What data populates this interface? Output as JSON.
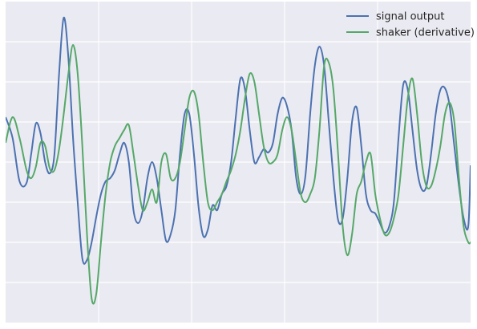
{
  "chart_data": {
    "type": "line",
    "style": {
      "background": "#EAEAF2",
      "grid_color": "#FFFFFF",
      "grid": true,
      "tick_labels_shown": false
    },
    "xlim": [
      0,
      100
    ],
    "ylim": [
      -1.0,
      1.0
    ],
    "x_grid": [
      20,
      40,
      60,
      80
    ],
    "y_grid": [
      -0.75,
      -0.5,
      -0.25,
      0.0,
      0.25,
      0.5,
      0.75
    ],
    "legend_position": "upper right",
    "series": [
      {
        "name": "signal output",
        "color": "#4C72B0",
        "points": [
          [
            0,
            0.28
          ],
          [
            1.5,
            0.15
          ],
          [
            3,
            -0.12
          ],
          [
            4.5,
            -0.13
          ],
          [
            5.5,
            0.05
          ],
          [
            6.5,
            0.24
          ],
          [
            7.5,
            0.18
          ],
          [
            8.5,
            0.0
          ],
          [
            9.5,
            -0.07
          ],
          [
            10.5,
            0.05
          ],
          [
            11.5,
            0.55
          ],
          [
            12.5,
            0.9
          ],
          [
            13.5,
            0.65
          ],
          [
            14.5,
            0.15
          ],
          [
            15.5,
            -0.25
          ],
          [
            16.5,
            -0.6
          ],
          [
            17.5,
            -0.61
          ],
          [
            18.5,
            -0.5
          ],
          [
            19.5,
            -0.34
          ],
          [
            20.5,
            -0.2
          ],
          [
            21.5,
            -0.12
          ],
          [
            22.5,
            -0.1
          ],
          [
            23.5,
            -0.05
          ],
          [
            24.5,
            0.05
          ],
          [
            25.5,
            0.12
          ],
          [
            26.5,
            0.0
          ],
          [
            27.5,
            -0.3
          ],
          [
            28.5,
            -0.38
          ],
          [
            29.5,
            -0.3
          ],
          [
            30.5,
            -0.1
          ],
          [
            31.5,
            0.0
          ],
          [
            32.5,
            -0.1
          ],
          [
            33.5,
            -0.3
          ],
          [
            34.5,
            -0.49
          ],
          [
            35.5,
            -0.45
          ],
          [
            36.5,
            -0.3
          ],
          [
            37.5,
            0.05
          ],
          [
            38.5,
            0.3
          ],
          [
            39.5,
            0.3
          ],
          [
            40.5,
            0.05
          ],
          [
            41.5,
            -0.28
          ],
          [
            42.5,
            -0.46
          ],
          [
            43.5,
            -0.42
          ],
          [
            44.5,
            -0.27
          ],
          [
            45.5,
            -0.3
          ],
          [
            46.5,
            -0.2
          ],
          [
            47.5,
            -0.15
          ],
          [
            48.5,
            0.0
          ],
          [
            49.5,
            0.28
          ],
          [
            50.5,
            0.52
          ],
          [
            51.5,
            0.45
          ],
          [
            52.5,
            0.2
          ],
          [
            53.5,
            0.0
          ],
          [
            54.5,
            0.03
          ],
          [
            55.5,
            0.08
          ],
          [
            56.5,
            0.06
          ],
          [
            57.5,
            0.12
          ],
          [
            58.5,
            0.3
          ],
          [
            59.5,
            0.4
          ],
          [
            60.5,
            0.35
          ],
          [
            61.5,
            0.2
          ],
          [
            62.5,
            -0.1
          ],
          [
            63.5,
            -0.2
          ],
          [
            64.5,
            -0.08
          ],
          [
            65.5,
            0.3
          ],
          [
            66.5,
            0.6
          ],
          [
            67.5,
            0.72
          ],
          [
            68.5,
            0.6
          ],
          [
            69.5,
            0.25
          ],
          [
            70.5,
            -0.1
          ],
          [
            71.5,
            -0.36
          ],
          [
            72.5,
            -0.35
          ],
          [
            73.5,
            -0.1
          ],
          [
            74.5,
            0.25
          ],
          [
            75.5,
            0.34
          ],
          [
            76.5,
            0.1
          ],
          [
            77.5,
            -0.2
          ],
          [
            78.5,
            -0.3
          ],
          [
            79.5,
            -0.32
          ],
          [
            80.5,
            -0.38
          ],
          [
            81.5,
            -0.44
          ],
          [
            82.5,
            -0.4
          ],
          [
            83.5,
            -0.25
          ],
          [
            84.5,
            0.15
          ],
          [
            85.5,
            0.48
          ],
          [
            86.5,
            0.45
          ],
          [
            87.5,
            0.2
          ],
          [
            88.5,
            -0.05
          ],
          [
            89.5,
            -0.17
          ],
          [
            90.5,
            -0.15
          ],
          [
            91.5,
            0.05
          ],
          [
            92.5,
            0.3
          ],
          [
            93.5,
            0.45
          ],
          [
            94.5,
            0.46
          ],
          [
            95.5,
            0.35
          ],
          [
            96.5,
            0.1
          ],
          [
            97.5,
            -0.15
          ],
          [
            98.5,
            -0.35
          ],
          [
            99.5,
            -0.4
          ],
          [
            100,
            -0.02
          ]
        ]
      },
      {
        "name": "shaker (derivative)",
        "color": "#55A868",
        "points": [
          [
            0,
            0.12
          ],
          [
            1.5,
            0.28
          ],
          [
            3,
            0.15
          ],
          [
            4.5,
            -0.05
          ],
          [
            5.5,
            -0.1
          ],
          [
            6.5,
            -0.03
          ],
          [
            7.5,
            0.12
          ],
          [
            8.5,
            0.1
          ],
          [
            9.5,
            -0.04
          ],
          [
            10.5,
            -0.05
          ],
          [
            11.5,
            0.08
          ],
          [
            12.5,
            0.3
          ],
          [
            13.5,
            0.55
          ],
          [
            14.5,
            0.73
          ],
          [
            15.5,
            0.55
          ],
          [
            16.5,
            0.1
          ],
          [
            17.5,
            -0.45
          ],
          [
            18.5,
            -0.85
          ],
          [
            19.5,
            -0.82
          ],
          [
            20.5,
            -0.5
          ],
          [
            21.5,
            -0.2
          ],
          [
            22.5,
            0.0
          ],
          [
            23.5,
            0.1
          ],
          [
            24.5,
            0.15
          ],
          [
            25.5,
            0.2
          ],
          [
            26.5,
            0.23
          ],
          [
            27.5,
            0.05
          ],
          [
            28.5,
            -0.15
          ],
          [
            29.5,
            -0.3
          ],
          [
            30.5,
            -0.25
          ],
          [
            31.5,
            -0.17
          ],
          [
            32.5,
            -0.25
          ],
          [
            33.5,
            0.0
          ],
          [
            34.5,
            0.05
          ],
          [
            35.5,
            -0.1
          ],
          [
            36.5,
            -0.1
          ],
          [
            37.5,
            0.0
          ],
          [
            38.5,
            0.2
          ],
          [
            39.5,
            0.4
          ],
          [
            40.5,
            0.44
          ],
          [
            41.5,
            0.3
          ],
          [
            42.5,
            0.0
          ],
          [
            43.5,
            -0.25
          ],
          [
            44.5,
            -0.3
          ],
          [
            45.5,
            -0.25
          ],
          [
            46.5,
            -0.2
          ],
          [
            47.5,
            -0.12
          ],
          [
            48.5,
            -0.05
          ],
          [
            49.5,
            0.05
          ],
          [
            50.5,
            0.2
          ],
          [
            51.5,
            0.4
          ],
          [
            52.5,
            0.55
          ],
          [
            53.5,
            0.5
          ],
          [
            54.5,
            0.3
          ],
          [
            55.5,
            0.1
          ],
          [
            56.5,
            0.0
          ],
          [
            57.5,
            0.0
          ],
          [
            58.5,
            0.05
          ],
          [
            59.5,
            0.2
          ],
          [
            60.5,
            0.28
          ],
          [
            61.5,
            0.2
          ],
          [
            62.5,
            0.0
          ],
          [
            63.5,
            -0.2
          ],
          [
            64.5,
            -0.25
          ],
          [
            65.5,
            -0.2
          ],
          [
            66.5,
            -0.1
          ],
          [
            67.5,
            0.2
          ],
          [
            68.5,
            0.6
          ],
          [
            69.5,
            0.62
          ],
          [
            70.5,
            0.45
          ],
          [
            71.5,
            0.05
          ],
          [
            72.5,
            -0.4
          ],
          [
            73.5,
            -0.58
          ],
          [
            74.5,
            -0.45
          ],
          [
            75.5,
            -0.2
          ],
          [
            76.5,
            -0.12
          ],
          [
            77.5,
            0.0
          ],
          [
            78.5,
            0.05
          ],
          [
            79.5,
            -0.2
          ],
          [
            80.5,
            -0.35
          ],
          [
            81.5,
            -0.45
          ],
          [
            82.5,
            -0.44
          ],
          [
            83.5,
            -0.35
          ],
          [
            84.5,
            -0.2
          ],
          [
            85.5,
            0.1
          ],
          [
            86.5,
            0.4
          ],
          [
            87.5,
            0.52
          ],
          [
            88.5,
            0.3
          ],
          [
            89.5,
            0.0
          ],
          [
            90.5,
            -0.15
          ],
          [
            91.5,
            -0.15
          ],
          [
            92.5,
            -0.05
          ],
          [
            93.5,
            0.1
          ],
          [
            94.5,
            0.3
          ],
          [
            95.5,
            0.37
          ],
          [
            96.5,
            0.25
          ],
          [
            97.5,
            -0.1
          ],
          [
            98.5,
            -0.4
          ],
          [
            99.5,
            -0.5
          ],
          [
            100,
            -0.5
          ]
        ]
      }
    ]
  }
}
